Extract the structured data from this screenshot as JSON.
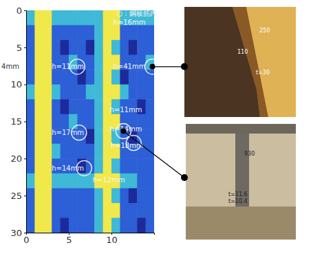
{
  "chart_data": {
    "type": "heatmap",
    "xlim": [
      0,
      15
    ],
    "ylim": [
      0,
      30
    ],
    "xticks": [
      0,
      5,
      10
    ],
    "yticks": [
      0,
      5,
      10,
      15,
      20,
      25,
      30
    ],
    "x_edges": [
      0,
      1,
      2,
      3,
      4,
      5,
      6,
      7,
      8,
      9,
      10,
      11,
      12,
      13,
      14,
      15
    ],
    "y_edges": [
      0,
      2,
      4,
      6,
      8,
      10,
      12,
      14,
      16,
      18,
      20,
      22,
      24,
      26,
      28,
      30
    ],
    "cells": [
      [
        2,
        3,
        3,
        2,
        2,
        2,
        2,
        2,
        2,
        3,
        3,
        2,
        2,
        2,
        2
      ],
      [
        1,
        3,
        3,
        1,
        1,
        1,
        1,
        1,
        2,
        3,
        3,
        1,
        1,
        1,
        1
      ],
      [
        1,
        3,
        3,
        1,
        0,
        1,
        1,
        0,
        2,
        3,
        2,
        1,
        0,
        1,
        1
      ],
      [
        1,
        3,
        3,
        1,
        1,
        2,
        1,
        1,
        2,
        3,
        3,
        1,
        1,
        1,
        2
      ],
      [
        1,
        3,
        3,
        1,
        1,
        1,
        0,
        1,
        2,
        3,
        2,
        0,
        1,
        1,
        1
      ],
      [
        2,
        3,
        3,
        2,
        1,
        1,
        1,
        2,
        2,
        3,
        3,
        2,
        1,
        1,
        1
      ],
      [
        1,
        3,
        3,
        1,
        0,
        1,
        1,
        1,
        2,
        3,
        2,
        1,
        1,
        0,
        1
      ],
      [
        1,
        3,
        3,
        1,
        1,
        2,
        1,
        1,
        2,
        3,
        3,
        1,
        1,
        1,
        1
      ],
      [
        1,
        3,
        3,
        1,
        1,
        1,
        1,
        0,
        2,
        3,
        2,
        1,
        0,
        1,
        1
      ],
      [
        1,
        3,
        3,
        2,
        1,
        1,
        1,
        1,
        2,
        3,
        3,
        1,
        1,
        1,
        1
      ],
      [
        1,
        3,
        3,
        1,
        1,
        1,
        0,
        1,
        2,
        3,
        2,
        1,
        1,
        1,
        1
      ],
      [
        2,
        3,
        3,
        2,
        2,
        2,
        2,
        2,
        3,
        3,
        3,
        2,
        2,
        1,
        1
      ],
      [
        1,
        3,
        3,
        1,
        1,
        1,
        1,
        1,
        2,
        3,
        2,
        1,
        0,
        1,
        1
      ],
      [
        1,
        3,
        3,
        1,
        1,
        1,
        1,
        1,
        2,
        3,
        3,
        1,
        1,
        1,
        1
      ],
      [
        1,
        3,
        3,
        1,
        0,
        1,
        1,
        1,
        2,
        3,
        2,
        1,
        1,
        0,
        1
      ]
    ],
    "annotations": [
      {
        "text": "○：鋼板筋内",
        "x": 10.6,
        "y": 0.5
      },
      {
        "text": "h=16mm",
        "x": 10.2,
        "y": 1.7
      },
      {
        "text": "4mm",
        "x": -2.9,
        "y": 7.6
      },
      {
        "text": "h=11mm",
        "x": 3.0,
        "y": 7.6
      },
      {
        "text": "h=41mm",
        "x": 10.2,
        "y": 7.6
      },
      {
        "text": "h=11mm",
        "x": 9.8,
        "y": 13.5
      },
      {
        "text": "h=17mm",
        "x": 3.0,
        "y": 16.5
      },
      {
        "text": "h=14mm",
        "x": 9.8,
        "y": 16.1
      },
      {
        "text": "h=18mm",
        "x": 9.9,
        "y": 18.3
      },
      {
        "text": "h=14mm",
        "x": 3.0,
        "y": 21.4
      },
      {
        "text": "h=12mm",
        "x": 7.8,
        "y": 22.9
      }
    ],
    "circles": [
      {
        "x": 6.0,
        "y": 7.6
      },
      {
        "x": 14.8,
        "y": 7.6
      },
      {
        "x": 6.2,
        "y": 16.5
      },
      {
        "x": 11.4,
        "y": 16.3
      },
      {
        "x": 12.6,
        "y": 17.9
      },
      {
        "x": 6.8,
        "y": 21.3
      }
    ]
  },
  "photos": [
    {
      "labels": [
        "250",
        "110",
        "t=30"
      ]
    },
    {
      "labels": [
        "930",
        "t=11.6",
        "t=10.4"
      ]
    }
  ]
}
